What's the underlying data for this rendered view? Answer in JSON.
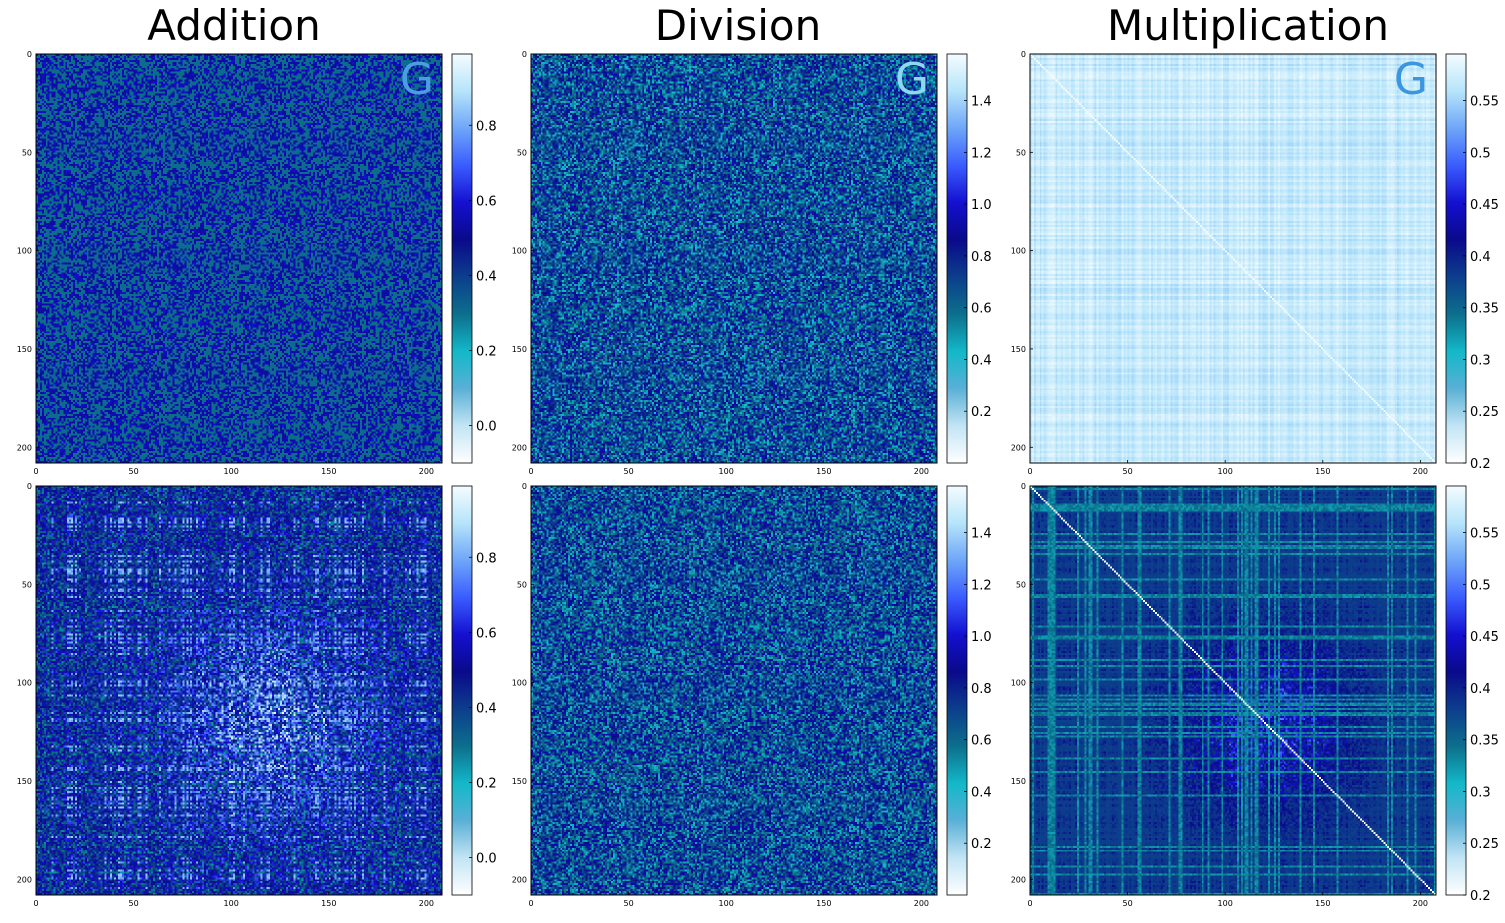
{
  "chart_data": [
    {
      "type": "heatmap",
      "name": "addition-top",
      "title": "Addition",
      "matrix_size": 208,
      "pattern": "noise-addition",
      "x_ticks": [
        0,
        50,
        100,
        150,
        200
      ],
      "y_ticks": [
        0,
        50,
        100,
        150,
        200
      ],
      "colorbar": {
        "range": [
          -0.1,
          0.99
        ],
        "ticks": [
          "0.0",
          "0.2",
          "0.4",
          "0.6",
          "0.8"
        ],
        "tick_values": [
          0.0,
          0.2,
          0.4,
          0.6,
          0.8
        ]
      },
      "badge": "G",
      "badge_color": "#4a9ee0"
    },
    {
      "type": "heatmap",
      "name": "division-top",
      "title": "Division",
      "matrix_size": 208,
      "pattern": "noise-division",
      "x_ticks": [
        0,
        50,
        100,
        150,
        200
      ],
      "y_ticks": [
        0,
        50,
        100,
        150,
        200
      ],
      "colorbar": {
        "range": [
          0.0,
          1.58
        ],
        "ticks": [
          "0.2",
          "0.4",
          "0.6",
          "0.8",
          "1.0",
          "1.2",
          "1.4"
        ],
        "tick_values": [
          0.2,
          0.4,
          0.6,
          0.8,
          1.0,
          1.2,
          1.4
        ]
      },
      "badge": "G",
      "badge_color": "#8fd6f0"
    },
    {
      "type": "heatmap",
      "name": "multiplication-top",
      "title": "Multiplication",
      "matrix_size": 208,
      "pattern": "light-multiplication",
      "x_ticks": [
        0,
        50,
        100,
        150,
        200
      ],
      "y_ticks": [
        0,
        50,
        100,
        150,
        200
      ],
      "colorbar": {
        "range": [
          0.2,
          0.595
        ],
        "ticks": [
          "0.2",
          "0.25",
          "0.3",
          "0.35",
          "0.4",
          "0.45",
          "0.5",
          "0.55"
        ],
        "tick_values": [
          0.2,
          0.25,
          0.3,
          0.35,
          0.4,
          0.45,
          0.5,
          0.55
        ]
      },
      "badge": "G",
      "badge_color": "#3a96de"
    },
    {
      "type": "heatmap",
      "name": "addition-bottom",
      "matrix_size": 208,
      "pattern": "structured-addition",
      "x_ticks": [
        0,
        50,
        100,
        150,
        200
      ],
      "y_ticks": [
        0,
        50,
        100,
        150,
        200
      ],
      "colorbar": {
        "range": [
          -0.1,
          0.99
        ],
        "ticks": [
          "0.0",
          "0.2",
          "0.4",
          "0.6",
          "0.8"
        ],
        "tick_values": [
          0.0,
          0.2,
          0.4,
          0.6,
          0.8
        ]
      }
    },
    {
      "type": "heatmap",
      "name": "division-bottom",
      "matrix_size": 208,
      "pattern": "structured-division",
      "x_ticks": [
        0,
        50,
        100,
        150,
        200
      ],
      "y_ticks": [
        0,
        50,
        100,
        150,
        200
      ],
      "colorbar": {
        "range": [
          0.0,
          1.58
        ],
        "ticks": [
          "0.2",
          "0.4",
          "0.6",
          "0.8",
          "1.0",
          "1.2",
          "1.4"
        ],
        "tick_values": [
          0.2,
          0.4,
          0.6,
          0.8,
          1.0,
          1.2,
          1.4
        ]
      }
    },
    {
      "type": "heatmap",
      "name": "multiplication-bottom",
      "matrix_size": 208,
      "pattern": "structured-multiplication",
      "x_ticks": [
        0,
        50,
        100,
        150,
        200
      ],
      "y_ticks": [
        0,
        50,
        100,
        150,
        200
      ],
      "colorbar": {
        "range": [
          0.2,
          0.595
        ],
        "ticks": [
          "0.2",
          "0.25",
          "0.3",
          "0.35",
          "0.4",
          "0.45",
          "0.5",
          "0.55"
        ],
        "tick_values": [
          0.2,
          0.25,
          0.3,
          0.35,
          0.4,
          0.45,
          0.5,
          0.55
        ]
      }
    }
  ],
  "colormap": [
    "#ffffff",
    "#c2e4f4",
    "#5ab0d6",
    "#12b8c8",
    "#0c6f8c",
    "#0c3e8c",
    "#0a0a8a",
    "#1410d0",
    "#3a5cff",
    "#6ea6f8",
    "#b6e4fa",
    "#f4fcff"
  ]
}
